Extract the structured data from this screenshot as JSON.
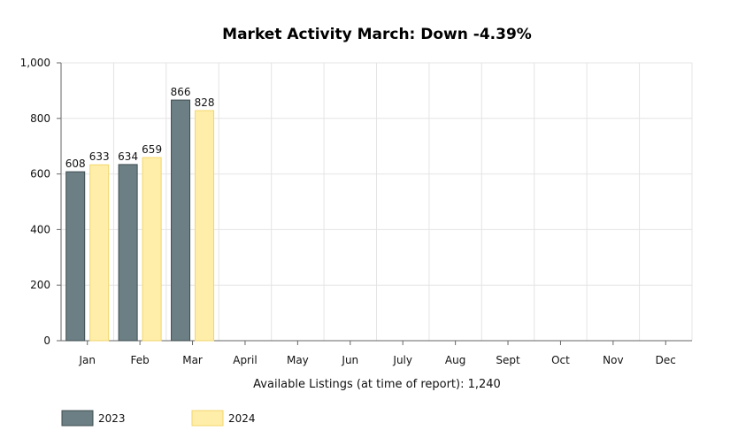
{
  "chart_data": {
    "type": "bar",
    "title": "Market Activity March: Down -4.39%",
    "xlabel": "Available Listings (at time of report): 1,240",
    "ylabel": "",
    "ylim": [
      0,
      1000
    ],
    "yticks": [
      "0",
      "200",
      "400",
      "600",
      "800",
      "1,000"
    ],
    "ytick_values": [
      0,
      200,
      400,
      600,
      800,
      1000
    ],
    "grid": true,
    "legend_position": "bottom-left",
    "categories": [
      "Jan",
      "Feb",
      "Mar",
      "April",
      "May",
      "Jun",
      "July",
      "Aug",
      "Sept",
      "Oct",
      "Nov",
      "Dec"
    ],
    "series": [
      {
        "name": "2023",
        "color": "#6b7f84",
        "stroke": "#3f4d51",
        "values": [
          608,
          634,
          866,
          null,
          null,
          null,
          null,
          null,
          null,
          null,
          null,
          null
        ],
        "labels": [
          "608",
          "634",
          "866",
          null,
          null,
          null,
          null,
          null,
          null,
          null,
          null,
          null
        ]
      },
      {
        "name": "2024",
        "color": "#ffeeaa",
        "stroke": "#f2d66a",
        "values": [
          633,
          659,
          828,
          null,
          null,
          null,
          null,
          null,
          null,
          null,
          null,
          null
        ],
        "labels": [
          "633",
          "659",
          "828",
          null,
          null,
          null,
          null,
          null,
          null,
          null,
          null,
          null
        ]
      }
    ]
  }
}
